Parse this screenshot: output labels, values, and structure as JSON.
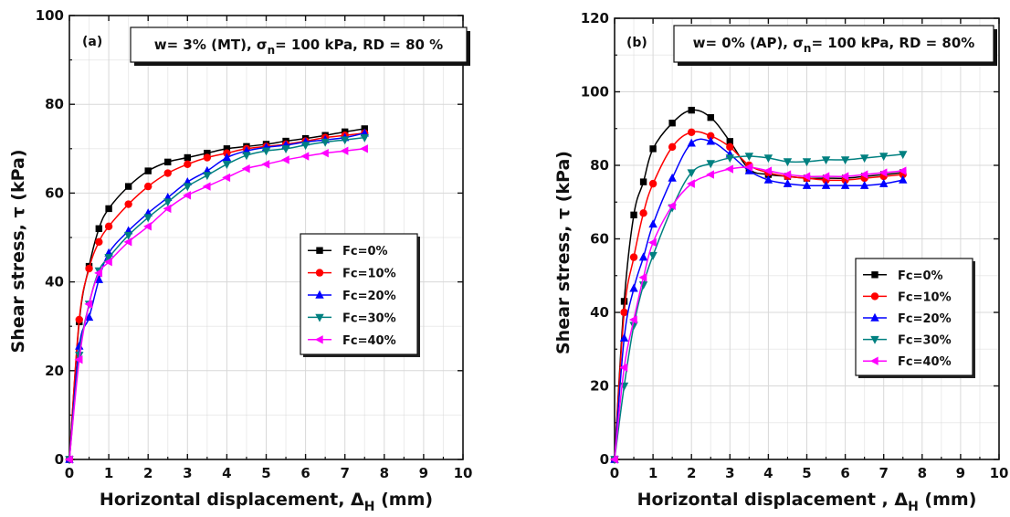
{
  "chart_data": [
    {
      "type": "line",
      "panel_label": "(a)",
      "condition": {
        "prefix": "w= 3% (MT), ",
        "sigma": "σ",
        "sub": "n",
        "suffix": "= 100 kPa, RD = 80 %"
      },
      "xlabel": {
        "main": "Horizontal displacement, Δ",
        "sub": "H",
        "unit": " (mm)"
      },
      "ylabel": "Shear stress, τ (kPa)",
      "xlim": [
        0,
        10
      ],
      "ylim": [
        0,
        100
      ],
      "xticks": [
        "0",
        "1",
        "2",
        "3",
        "4",
        "5",
        "6",
        "7",
        "8",
        "9",
        "10"
      ],
      "yticks": [
        "0",
        "20",
        "40",
        "60",
        "80",
        "100"
      ],
      "ytick_values": [
        0,
        20,
        40,
        60,
        80,
        100
      ],
      "grid": true,
      "legend_position": "center-right",
      "x": [
        0,
        0.25,
        0.5,
        0.75,
        1,
        1.5,
        2,
        2.5,
        3,
        3.5,
        4,
        4.5,
        5,
        5.5,
        6,
        6.5,
        7,
        7.5
      ],
      "series": [
        {
          "name": "Fc=0%",
          "color": "#000000",
          "marker": "square",
          "values": [
            0,
            31,
            43.5,
            52,
            56.5,
            61.5,
            65,
            67,
            68,
            69,
            70,
            70.5,
            71,
            71.7,
            72.3,
            73,
            73.8,
            74.5
          ]
        },
        {
          "name": "Fc=10%",
          "color": "#ff0000",
          "marker": "circle",
          "values": [
            0,
            31.5,
            43,
            49,
            52.5,
            57.5,
            61.5,
            64.5,
            66.5,
            68,
            69,
            70,
            70.5,
            71,
            71.7,
            72.5,
            73,
            73.5
          ]
        },
        {
          "name": "Fc=20%",
          "color": "#0000ff",
          "marker": "triangle-up",
          "values": [
            0,
            25.5,
            32,
            40.5,
            46.5,
            51.5,
            55.5,
            59,
            62.5,
            65,
            68,
            69.5,
            70.3,
            70.8,
            71.5,
            72,
            72.5,
            73.5
          ]
        },
        {
          "name": "Fc=30%",
          "color": "#008080",
          "marker": "triangle-down",
          "values": [
            0,
            23.5,
            35,
            42.5,
            45.5,
            50.5,
            54.5,
            58,
            61.5,
            64,
            66.5,
            68.5,
            69.5,
            70,
            70.8,
            71.5,
            72,
            72.5
          ]
        },
        {
          "name": "Fc=40%",
          "color": "#ff00ff",
          "marker": "triangle-left",
          "values": [
            0,
            22.5,
            35,
            42,
            44.5,
            49,
            52.5,
            56.5,
            59.5,
            61.5,
            63.5,
            65.5,
            66.5,
            67.5,
            68.3,
            69,
            69.5,
            70
          ]
        }
      ]
    },
    {
      "type": "line",
      "panel_label": "(b)",
      "condition": {
        "prefix": "w= 0% (AP), ",
        "sigma": "σ",
        "sub": "n",
        "suffix": "= 100 kPa, RD = 80%"
      },
      "xlabel": {
        "main": "Horizontal displacement , Δ",
        "sub": "H",
        "unit": " (mm)"
      },
      "ylabel": "Shear stress, τ (kPa)",
      "xlim": [
        0,
        10
      ],
      "ylim": [
        0,
        120
      ],
      "xticks": [
        "0",
        "1",
        "2",
        "3",
        "4",
        "5",
        "6",
        "7",
        "8",
        "9",
        "10"
      ],
      "yticks": [
        "0",
        "20",
        "40",
        "60",
        "80",
        "100",
        "120"
      ],
      "ytick_values": [
        0,
        20,
        40,
        60,
        80,
        100,
        120
      ],
      "grid": true,
      "legend_position": "bottom-right",
      "x": [
        0,
        0.25,
        0.5,
        0.75,
        1,
        1.5,
        2,
        2.5,
        3,
        3.5,
        4,
        4.5,
        5,
        5.5,
        6,
        6.5,
        7,
        7.5
      ],
      "series": [
        {
          "name": "Fc=0%",
          "color": "#000000",
          "marker": "square",
          "values": [
            0,
            43,
            66.5,
            75.5,
            84.5,
            91.5,
            95,
            93,
            86.5,
            79,
            77.5,
            77,
            76.5,
            76.5,
            76.5,
            77,
            77.5,
            78
          ]
        },
        {
          "name": "Fc=10%",
          "color": "#ff0000",
          "marker": "circle",
          "values": [
            0,
            40,
            55,
            67,
            75,
            85,
            89,
            88,
            85,
            80,
            78,
            77,
            76.5,
            76,
            76,
            76.5,
            77,
            77.5
          ]
        },
        {
          "name": "Fc=20%",
          "color": "#0000ff",
          "marker": "triangle-up",
          "values": [
            0,
            33,
            46.5,
            55,
            64,
            76.5,
            86,
            86.5,
            83,
            78.5,
            76,
            75,
            74.5,
            74.5,
            74.5,
            74.5,
            75,
            76
          ]
        },
        {
          "name": "Fc=30%",
          "color": "#008080",
          "marker": "triangle-down",
          "values": [
            0,
            20,
            36.5,
            47.5,
            55.5,
            68.5,
            78,
            80.5,
            82,
            82.5,
            82,
            81,
            81,
            81.5,
            81.5,
            82,
            82.5,
            83
          ]
        },
        {
          "name": "Fc=40%",
          "color": "#ff00ff",
          "marker": "triangle-left",
          "values": [
            0,
            25,
            38,
            49.5,
            59,
            69,
            75,
            77.5,
            79,
            79.5,
            78.5,
            77.5,
            77,
            77,
            77,
            77.5,
            78,
            78.5
          ]
        }
      ]
    }
  ]
}
